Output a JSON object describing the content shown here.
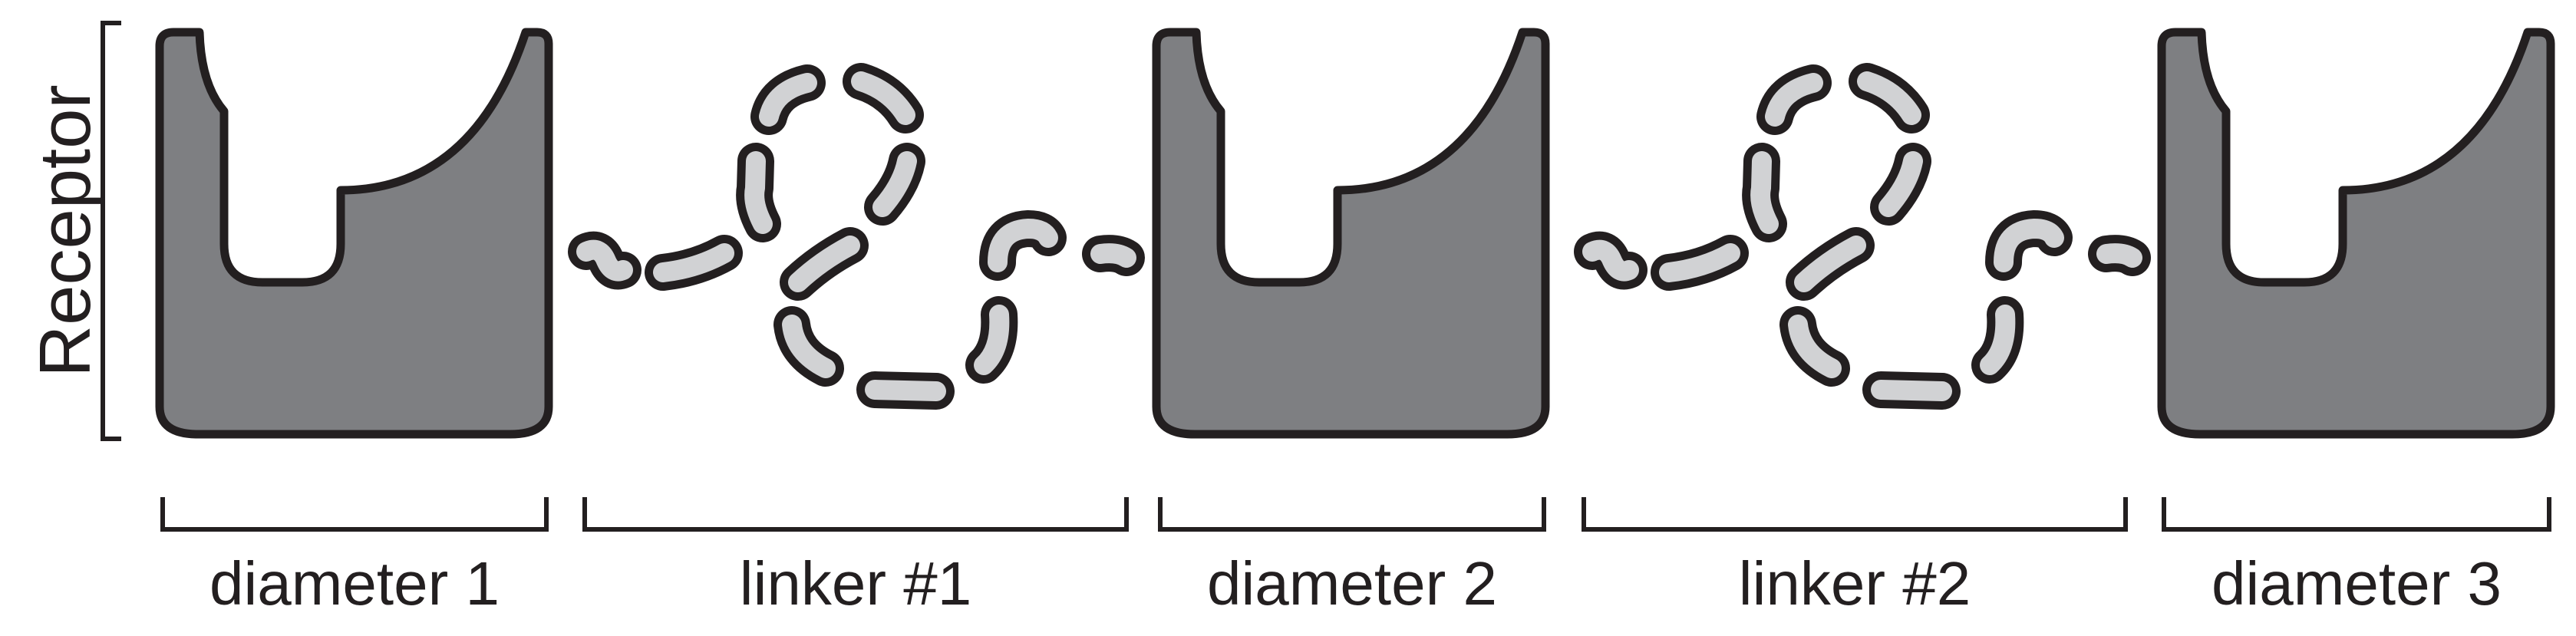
{
  "receptor_label": "Receptor",
  "sections": [
    {
      "label": "diameter 1"
    },
    {
      "label": "linker #1"
    },
    {
      "label": "diameter 2"
    },
    {
      "label": "linker #2"
    },
    {
      "label": "diameter 3"
    }
  ],
  "colors": {
    "receptor_fill": "#7e7f82",
    "linker_fill": "#d1d2d4",
    "outline": "#231f20"
  }
}
